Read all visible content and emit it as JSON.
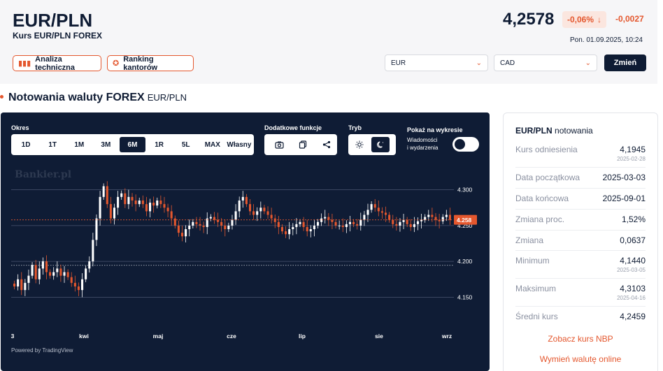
{
  "header": {
    "pair": "EUR/PLN",
    "subtitle": "Kurs EUR/PLN FOREX",
    "price": "4,2578",
    "change_pct": "-0,06%",
    "change_arrow_icon": "arrow-down-icon",
    "change_abs": "-0,0027",
    "timestamp": "Pon. 01.09.2025, 10:24",
    "analysis_button": "Analiza techniczna",
    "ranking_button": "Ranking kantorów",
    "from_currency": "EUR",
    "to_currency": "CAD",
    "change_button": "Zmień"
  },
  "section": {
    "title": "Notowania waluty FOREX",
    "pair": "EUR/PLN"
  },
  "chart_controls": {
    "period_label": "Okres",
    "periods": [
      "1D",
      "1T",
      "1M",
      "3M",
      "6M",
      "1R",
      "5L",
      "MAX",
      "Własny"
    ],
    "active_period": "6M",
    "extra_label": "Dodatkowe funkcje",
    "mode_label": "Tryb",
    "show_label": "Pokaż na wykresie",
    "news_label_1": "Wiadomości",
    "news_label_2": "i wydarzenia",
    "watermark": "Bankier.pl",
    "powered": "Powered by TradingView"
  },
  "chart_data": {
    "type": "candlestick",
    "x_labels": [
      "3",
      "kwi",
      "maj",
      "cze",
      "lip",
      "sie",
      "wrz"
    ],
    "y_ticks": [
      "4.300",
      "4.250",
      "4.200",
      "4.150"
    ],
    "y_tick_values": [
      4.3,
      4.25,
      4.2,
      4.15
    ],
    "ylim": [
      4.125,
      4.325
    ],
    "current_value": 4.258,
    "current_label": "4.258",
    "reference_value": 4.1945,
    "closes": [
      4.165,
      4.175,
      4.16,
      4.17,
      4.18,
      4.195,
      4.175,
      4.19,
      4.2,
      4.185,
      4.18,
      4.185,
      4.19,
      4.18,
      4.185,
      4.178,
      4.17,
      4.165,
      4.16,
      4.175,
      4.19,
      4.2,
      4.23,
      4.26,
      4.29,
      4.305,
      4.28,
      4.26,
      4.275,
      4.29,
      4.295,
      4.28,
      4.29,
      4.285,
      4.28,
      4.285,
      4.28,
      4.27,
      4.282,
      4.278,
      4.285,
      4.28,
      4.275,
      4.27,
      4.26,
      4.25,
      4.24,
      4.235,
      4.245,
      4.25,
      4.255,
      4.252,
      4.25,
      4.248,
      4.26,
      4.262,
      4.258,
      4.255,
      4.25,
      4.245,
      4.25,
      4.258,
      4.27,
      4.285,
      4.29,
      4.28,
      4.27,
      4.265,
      4.27,
      4.275,
      4.27,
      4.265,
      4.26,
      4.255,
      4.248,
      4.242,
      4.238,
      4.245,
      4.248,
      4.252,
      4.255,
      4.248,
      4.242,
      4.245,
      4.25,
      4.255,
      4.26,
      4.262,
      4.258,
      4.255,
      4.25,
      4.25,
      4.248,
      4.252,
      4.255,
      4.252,
      4.25,
      4.258,
      4.265,
      4.272,
      4.28,
      4.275,
      4.27,
      4.268,
      4.265,
      4.258,
      4.252,
      4.25,
      4.255,
      4.258,
      4.252,
      4.248,
      4.252,
      4.256,
      4.258,
      4.262,
      4.265,
      4.262,
      4.258,
      4.256,
      4.262,
      4.265,
      4.258
    ]
  },
  "side": {
    "pair": "EUR/PLN",
    "title_suffix": "notowania",
    "rows": [
      {
        "label": "Kurs odniesienia",
        "value": "4,1945",
        "date": "2025-02-28"
      },
      {
        "label": "Data początkowa",
        "value": "2025-03-03",
        "date": ""
      },
      {
        "label": "Data końcowa",
        "value": "2025-09-01",
        "date": ""
      },
      {
        "label": "Zmiana proc.",
        "value": "1,52%",
        "date": ""
      },
      {
        "label": "Zmiana",
        "value": "0,0637",
        "date": ""
      },
      {
        "label": "Minimum",
        "value": "4,1440",
        "date": "2025-03-05"
      },
      {
        "label": "Maksimum",
        "value": "4,3103",
        "date": "2025-04-16"
      },
      {
        "label": "Średni kurs",
        "value": "4,2459",
        "date": ""
      }
    ],
    "link_nbp": "Zobacz kurs NBP",
    "link_exchange": "Wymień walutę online"
  },
  "colors": {
    "accent": "#e4572e",
    "navy": "#0f1c35",
    "candle_up": "#ffffff",
    "candle_down": "#e4572e"
  }
}
